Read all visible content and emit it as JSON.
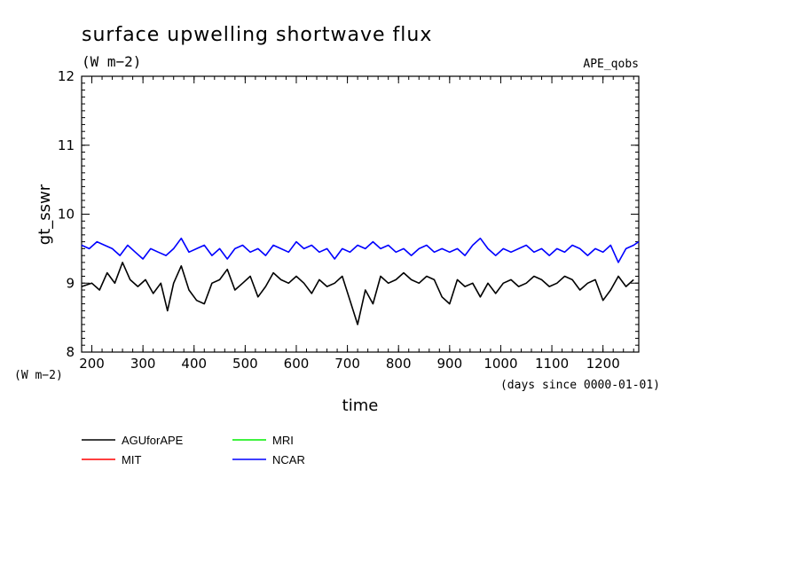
{
  "chart_data": {
    "type": "line",
    "title": "surface upwelling shortwave flux",
    "units": "(W m−2)",
    "dataset": "APE_qobs",
    "xlabel": "time",
    "x_units": "(days since 0000-01-01)",
    "ylabel": "gt_sswr",
    "y_units": "(W m−2)",
    "xlim": [
      180,
      1270
    ],
    "ylim": [
      8,
      12
    ],
    "x_ticks": [
      200,
      300,
      400,
      500,
      600,
      700,
      800,
      900,
      1000,
      1100,
      1200
    ],
    "x_tick_labels": [
      "200",
      "300",
      "400",
      "500",
      "600",
      "700",
      "800",
      "900",
      "1000",
      "1100",
      "1200"
    ],
    "y_ticks": [
      8,
      9,
      10,
      11,
      12
    ],
    "y_tick_labels": [
      "8",
      "9",
      "10",
      "11",
      "12"
    ],
    "legend_position": "bottom-left",
    "series": [
      {
        "name": "AGUforAPE",
        "color": "#000000",
        "x": [
          180,
          200,
          215,
          230,
          245,
          260,
          275,
          290,
          305,
          320,
          335,
          348,
          360,
          375,
          390,
          405,
          420,
          435,
          450,
          465,
          480,
          495,
          510,
          525,
          540,
          555,
          570,
          585,
          600,
          615,
          630,
          645,
          660,
          675,
          690,
          705,
          720,
          735,
          750,
          765,
          780,
          795,
          810,
          825,
          840,
          855,
          870,
          885,
          900,
          915,
          930,
          945,
          960,
          975,
          990,
          1005,
          1020,
          1035,
          1050,
          1065,
          1080,
          1095,
          1110,
          1125,
          1140,
          1155,
          1170,
          1185,
          1200,
          1215,
          1230,
          1245,
          1260
        ],
        "y": [
          8.95,
          9.0,
          8.9,
          9.15,
          9.0,
          9.3,
          9.05,
          8.95,
          9.05,
          8.85,
          9.0,
          8.6,
          9.0,
          9.25,
          8.9,
          8.75,
          8.7,
          9.0,
          9.05,
          9.2,
          8.9,
          9.0,
          9.1,
          8.8,
          8.95,
          9.15,
          9.05,
          9.0,
          9.1,
          9.0,
          8.85,
          9.05,
          8.95,
          9.0,
          9.1,
          8.75,
          8.4,
          8.9,
          8.7,
          9.1,
          9.0,
          9.05,
          9.15,
          9.05,
          9.0,
          9.1,
          9.05,
          8.8,
          8.7,
          9.05,
          8.95,
          9.0,
          8.8,
          9.0,
          8.85,
          9.0,
          9.05,
          8.95,
          9.0,
          9.1,
          9.05,
          8.95,
          9.0,
          9.1,
          9.05,
          8.9,
          9.0,
          9.05,
          8.75,
          8.9,
          9.1,
          8.95,
          9.05
        ]
      },
      {
        "name": "MIT",
        "color": "#ff0000",
        "x": [],
        "y": []
      },
      {
        "name": "MRI",
        "color": "#00ee00",
        "x": [],
        "y": []
      },
      {
        "name": "NCAR",
        "color": "#0000ff",
        "x": [
          180,
          195,
          210,
          225,
          240,
          255,
          270,
          285,
          300,
          315,
          330,
          345,
          360,
          375,
          390,
          405,
          420,
          435,
          450,
          465,
          480,
          495,
          510,
          525,
          540,
          555,
          570,
          585,
          600,
          615,
          630,
          645,
          660,
          675,
          690,
          705,
          720,
          735,
          750,
          765,
          780,
          795,
          810,
          825,
          840,
          855,
          870,
          885,
          900,
          915,
          930,
          945,
          960,
          975,
          990,
          1005,
          1020,
          1035,
          1050,
          1065,
          1080,
          1095,
          1110,
          1125,
          1140,
          1155,
          1170,
          1185,
          1200,
          1215,
          1230,
          1245,
          1260,
          1270
        ],
        "y": [
          9.55,
          9.5,
          9.6,
          9.55,
          9.5,
          9.4,
          9.55,
          9.45,
          9.35,
          9.5,
          9.45,
          9.4,
          9.5,
          9.65,
          9.45,
          9.5,
          9.55,
          9.4,
          9.5,
          9.35,
          9.5,
          9.55,
          9.45,
          9.5,
          9.4,
          9.55,
          9.5,
          9.45,
          9.6,
          9.5,
          9.55,
          9.45,
          9.5,
          9.35,
          9.5,
          9.45,
          9.55,
          9.5,
          9.6,
          9.5,
          9.55,
          9.45,
          9.5,
          9.4,
          9.5,
          9.55,
          9.45,
          9.5,
          9.45,
          9.5,
          9.4,
          9.55,
          9.65,
          9.5,
          9.4,
          9.5,
          9.45,
          9.5,
          9.55,
          9.45,
          9.5,
          9.4,
          9.5,
          9.45,
          9.55,
          9.5,
          9.4,
          9.5,
          9.45,
          9.55,
          9.3,
          9.5,
          9.55,
          9.6
        ]
      }
    ]
  }
}
